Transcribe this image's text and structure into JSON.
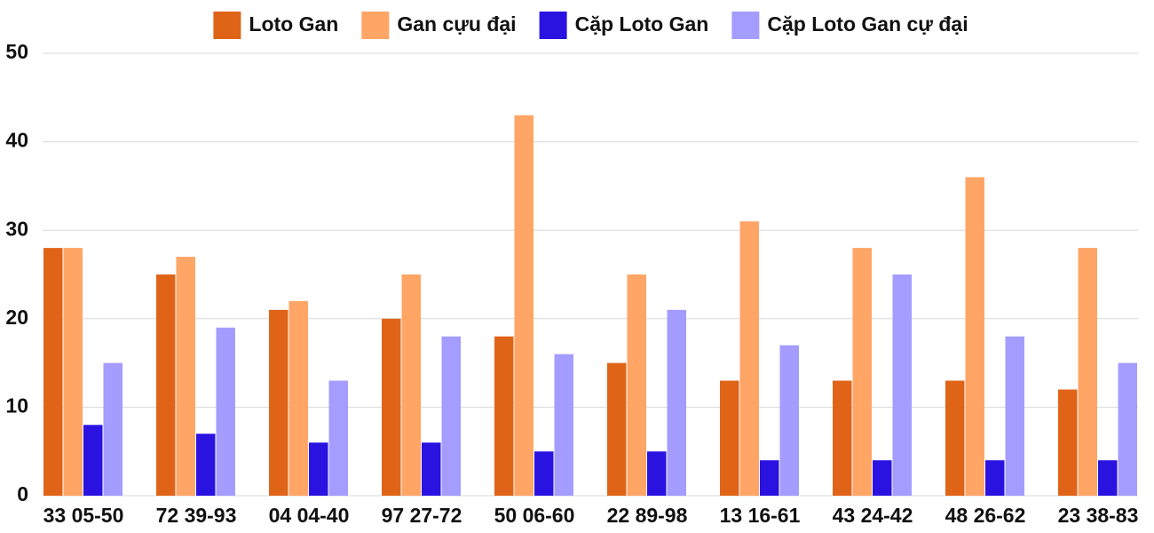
{
  "chart_data": {
    "type": "bar",
    "categories": [
      "33 05-50",
      "72 39-93",
      "04 04-40",
      "97 27-72",
      "50 06-60",
      "22 89-98",
      "13 16-61",
      "43 24-42",
      "48 26-62",
      "23 38-83"
    ],
    "series": [
      {
        "name": "Loto Gan",
        "color": "#e06418",
        "values": [
          28,
          25,
          21,
          20,
          18,
          15,
          13,
          13,
          13,
          12
        ]
      },
      {
        "name": "Gan cựu đại",
        "color": "#ffa566",
        "values": [
          28,
          27,
          22,
          25,
          43,
          25,
          31,
          28,
          36,
          28
        ]
      },
      {
        "name": "Cặp Loto Gan",
        "color": "#2a13e0",
        "values": [
          8,
          7,
          6,
          6,
          5,
          5,
          4,
          4,
          4,
          4
        ]
      },
      {
        "name": "Cặp Loto Gan cự đại",
        "color": "#a49cff",
        "values": [
          15,
          19,
          13,
          18,
          16,
          21,
          17,
          25,
          18,
          15
        ]
      }
    ],
    "ylim": [
      0,
      50
    ],
    "yticks": [
      0,
      10,
      20,
      30,
      40,
      50
    ],
    "grid": true,
    "legend": "top"
  }
}
